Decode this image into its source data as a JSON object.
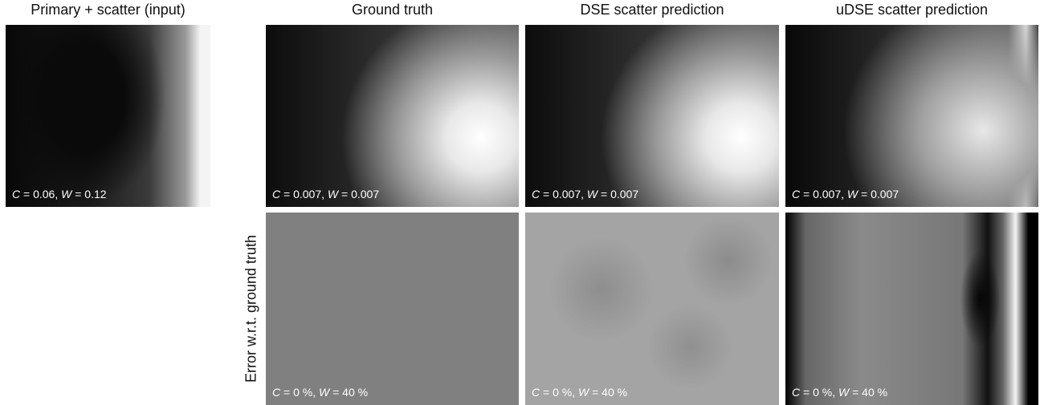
{
  "columns": [
    {
      "title": "Primary + scatter (input)",
      "label": {
        "c_symbol": "C",
        "c_text": " = 0.06, ",
        "w_symbol": "W",
        "w_text": " = 0.12"
      }
    },
    {
      "title": "Ground truth",
      "label": {
        "c_symbol": "C",
        "c_text": " = 0.007, ",
        "w_symbol": "W",
        "w_text": " = 0.007"
      },
      "error_label": {
        "c_symbol": "C",
        "c_text": " = 0 %, ",
        "w_symbol": "W",
        "w_text": " = 40 %"
      }
    },
    {
      "title": "DSE scatter prediction",
      "label": {
        "c_symbol": "C",
        "c_text": " = 0.007, ",
        "w_symbol": "W",
        "w_text": " = 0.007"
      },
      "error_label": {
        "c_symbol": "C",
        "c_text": " = 0 %, ",
        "w_symbol": "W",
        "w_text": " = 40 %"
      }
    },
    {
      "title": "uDSE scatter prediction",
      "label": {
        "c_symbol": "C",
        "c_text": " = 0.007, ",
        "w_symbol": "W",
        "w_text": " = 0.007"
      },
      "error_label": {
        "c_symbol": "C",
        "c_text": " = 0 %, ",
        "w_symbol": "W",
        "w_text": " = 40 %"
      }
    }
  ],
  "row_label": "Error w.r.t. ground truth"
}
